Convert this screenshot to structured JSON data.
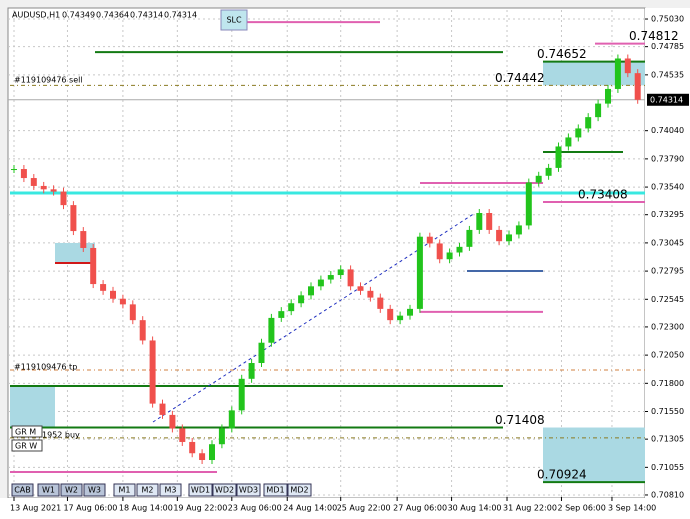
{
  "chart_data": {
    "type": "candlestick",
    "symbol": "AUDUSD,H1",
    "ohlc": [
      0.74349,
      0.74364,
      0.74314,
      0.74314
    ],
    "closes": [
      0.737,
      0.7362,
      0.7355,
      0.7352,
      0.735,
      0.7338,
      0.7315,
      0.73,
      0.7268,
      0.7262,
      0.7255,
      0.725,
      0.7236,
      0.7218,
      0.7162,
      0.7152,
      0.714,
      0.7128,
      0.7118,
      0.7112,
      0.7126,
      0.714,
      0.7156,
      0.7184,
      0.7198,
      0.7216,
      0.7238,
      0.7244,
      0.7251,
      0.7258,
      0.7266,
      0.7272,
      0.7276,
      0.7281,
      0.7266,
      0.7262,
      0.7256,
      0.7246,
      0.7236,
      0.724,
      0.7246,
      0.731,
      0.7304,
      0.729,
      0.7296,
      0.7301,
      0.7316,
      0.7331,
      0.7316,
      0.7306,
      0.7312,
      0.732,
      0.7358,
      0.7364,
      0.7371,
      0.739,
      0.7398,
      0.7406,
      0.7416,
      0.7428,
      0.7441,
      0.7468,
      0.7455,
      0.74314
    ],
    "up_color": "#22c41c",
    "down_color": "#f0504c",
    "ylim": [
      0.70792,
      0.7511
    ],
    "yticks": [
      {
        "value": 0.7503,
        "label": "0.75030"
      },
      {
        "value": 0.74785,
        "label": "0.74785"
      },
      {
        "value": 0.74535,
        "label": "0.74535"
      },
      {
        "value": 0.7404,
        "label": "0.74040"
      },
      {
        "value": 0.7379,
        "label": "0.73790"
      },
      {
        "value": 0.7354,
        "label": "0.73540"
      },
      {
        "value": 0.73295,
        "label": "0.73295"
      },
      {
        "value": 0.73045,
        "label": "0.73045"
      },
      {
        "value": 0.72795,
        "label": "0.72795"
      },
      {
        "value": 0.72545,
        "label": "0.72545"
      },
      {
        "value": 0.723,
        "label": "0.72300"
      },
      {
        "value": 0.7205,
        "label": "0.72050"
      },
      {
        "value": 0.718,
        "label": "0.71800"
      },
      {
        "value": 0.7155,
        "label": "0.71550"
      },
      {
        "value": 0.71305,
        "label": "0.71305"
      },
      {
        "value": 0.71055,
        "label": "0.71055"
      },
      {
        "value": 0.7081,
        "label": "0.70810"
      }
    ],
    "xticks": [
      {
        "value": 0,
        "label": "13 Aug 2021"
      },
      {
        "value": 5.4,
        "label": "17 Aug 06:00"
      },
      {
        "value": 11,
        "label": "18 Aug 14:00"
      },
      {
        "value": 16.5,
        "label": "19 Aug 22:00"
      },
      {
        "value": 22,
        "label": "23 Aug 06:00"
      },
      {
        "value": 27.6,
        "label": "24 Aug 14:00"
      },
      {
        "value": 33,
        "label": "25 Aug 22:00"
      },
      {
        "value": 38.7,
        "label": "27 Aug 06:00"
      },
      {
        "value": 44.2,
        "label": "30 Aug 14:00"
      },
      {
        "value": 49.8,
        "label": "31 Aug 22:00"
      },
      {
        "value": 55.3,
        "label": "2 Sep 06:00"
      },
      {
        "value": 60.4,
        "label": "3 Sep 14:00"
      }
    ],
    "grid": true,
    "current_price": {
      "value": 0.74314,
      "label": "0.74314"
    },
    "levels": [
      {
        "value": 0.75003,
        "color": "#e060b0"
      },
      {
        "value": 0.74737,
        "color": "#137a13"
      },
      {
        "value": 0.74812,
        "color": "#e060b0"
      },
      {
        "value": 0.74652,
        "color": "#137a13"
      },
      {
        "value": 0.74442,
        "color": "#8a7a20"
      },
      {
        "value": 0.73851,
        "color": "#137a13"
      },
      {
        "value": 0.73576,
        "color": "#e060b0"
      },
      {
        "value": 0.73487,
        "color": "#38e8e0"
      },
      {
        "value": 0.73408,
        "color": "#e060b0"
      },
      {
        "value": 0.72867,
        "color": "#d01818"
      },
      {
        "value": 0.72796,
        "color": "#4468a8"
      },
      {
        "value": 0.72433,
        "color": "#e060b0"
      },
      {
        "value": 0.71918,
        "color": "#d08040"
      },
      {
        "value": 0.71776,
        "color": "#137a13"
      },
      {
        "value": 0.71408,
        "color": "#137a13"
      },
      {
        "value": 0.71316,
        "color": "#8a7a20"
      },
      {
        "value": 0.71014,
        "color": "#e060b0"
      },
      {
        "value": 0.70924,
        "color": "#137a13"
      }
    ],
    "labels": {
      "sell": "#119109476 sell",
      "tp": "#119109476 tp",
      "buy": "1952 buy",
      "slc": "SLC",
      "grm": "GR M",
      "grw": "GR W"
    },
    "buttons": [
      "CAB",
      "W1",
      "W2",
      "W3",
      "M1",
      "M2",
      "M3",
      "WD1",
      "WD2",
      "WD3",
      "MD1",
      "MD2"
    ]
  }
}
